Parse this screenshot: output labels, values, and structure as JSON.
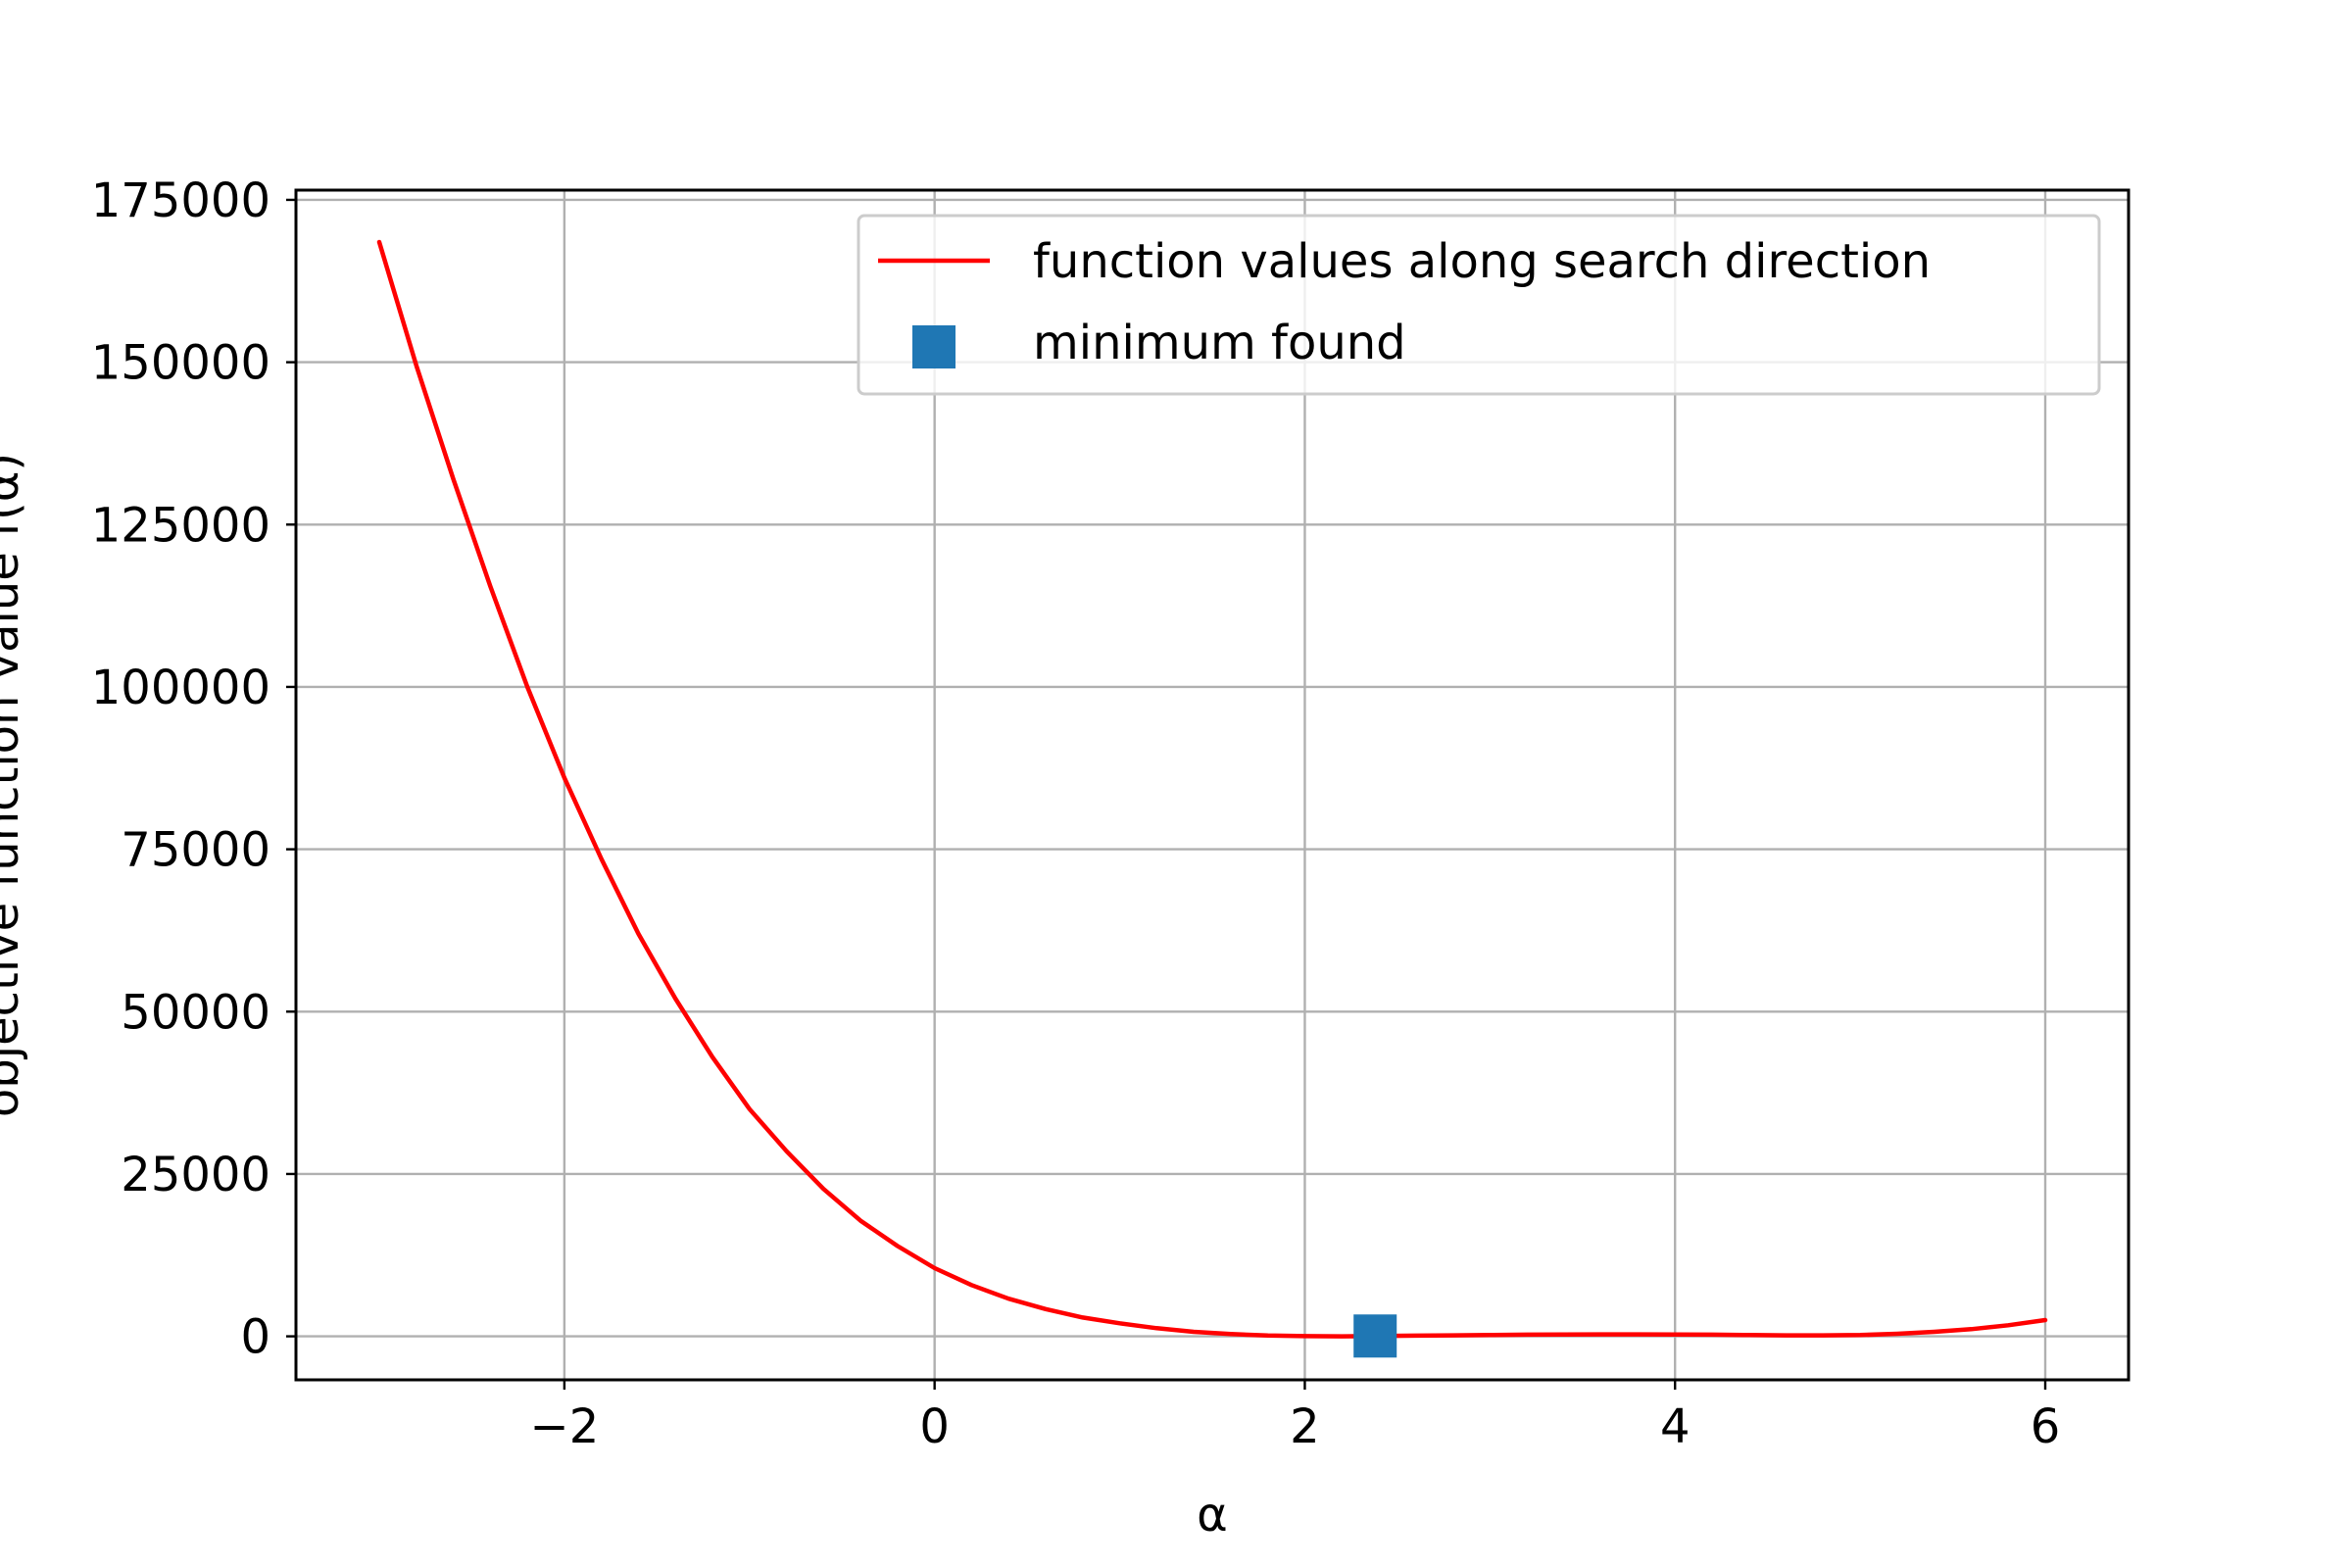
{
  "chart_data": {
    "type": "line",
    "xlabel": "α",
    "ylabel": "objective function value f(α)",
    "xlim": [
      -3.45,
      6.45
    ],
    "ylim": [
      -6700,
      176500
    ],
    "xticks": [
      -2,
      0,
      2,
      4,
      6
    ],
    "xtick_labels": [
      "−2",
      "0",
      "2",
      "4",
      "6"
    ],
    "yticks": [
      0,
      25000,
      50000,
      75000,
      100000,
      125000,
      150000,
      175000
    ],
    "ytick_labels": [
      "0",
      "25000",
      "50000",
      "75000",
      "100000",
      "125000",
      "150000",
      "175000"
    ],
    "grid": true,
    "legend_position": "top-right",
    "series": [
      {
        "name": "function values along search direction",
        "kind": "line",
        "color": "#ff0000",
        "x": [
          -3.0,
          -2.8,
          -2.6,
          -2.4,
          -2.2,
          -2.0,
          -1.8,
          -1.6,
          -1.4,
          -1.2,
          -1.0,
          -0.8,
          -0.6,
          -0.4,
          -0.2,
          0.0,
          0.2,
          0.4,
          0.6,
          0.8,
          1.0,
          1.2,
          1.4,
          1.6,
          1.8,
          2.0,
          2.2,
          2.4,
          2.6,
          2.8,
          3.0,
          3.2,
          3.4,
          3.6,
          3.8,
          4.0,
          4.2,
          4.4,
          4.6,
          4.8,
          5.0,
          5.2,
          5.4,
          5.6,
          5.8,
          6.0
        ],
        "y": [
          168500,
          149500,
          132000,
          115500,
          100000,
          86000,
          73500,
          62000,
          52000,
          43000,
          35000,
          28500,
          22700,
          17800,
          13900,
          10500,
          7900,
          5800,
          4200,
          2900,
          2000,
          1250,
          700,
          350,
          120,
          30,
          0,
          50,
          100,
          150,
          200,
          250,
          280,
          300,
          300,
          280,
          250,
          200,
          150,
          150,
          200,
          400,
          700,
          1100,
          1700,
          2500
        ]
      },
      {
        "name": "minimum found",
        "kind": "marker",
        "color": "#1f77b4",
        "x": [
          2.38
        ],
        "y": [
          50
        ]
      }
    ]
  }
}
